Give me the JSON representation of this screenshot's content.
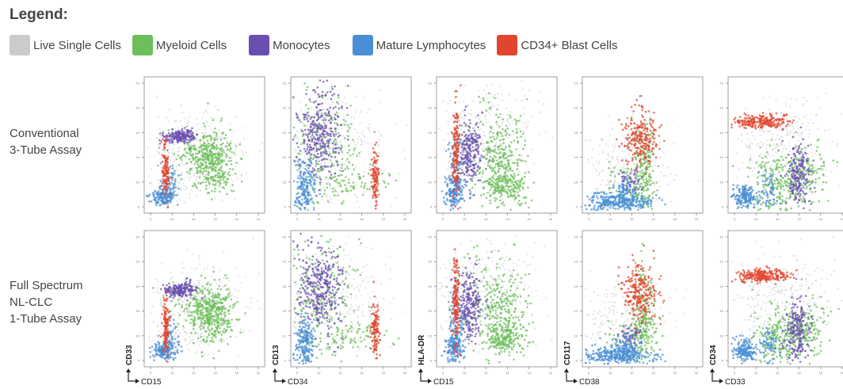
{
  "legend": {
    "title": "Legend:",
    "items": [
      {
        "label": "Live Single Cells",
        "color": "#c9cbcd"
      },
      {
        "label": "Myeloid Cells",
        "color": "#6cbf5a"
      },
      {
        "label": "Monocytes",
        "color": "#6b4fb0"
      },
      {
        "label": "Mature Lymphocytes",
        "color": "#4a8fd6"
      },
      {
        "label": "CD34+ Blast Cells",
        "color": "#e2442e"
      }
    ]
  },
  "rows": [
    {
      "label_lines": [
        "Conventional",
        "3-Tube Assay"
      ]
    },
    {
      "label_lines": [
        "Full Spectrum",
        "NL-CLC",
        "1-Tube Assay"
      ]
    }
  ],
  "chart_data": {
    "type": "scatter",
    "grid": false,
    "columns": [
      {
        "xlabel": "CD15",
        "ylabel": "CD33"
      },
      {
        "xlabel": "CD34",
        "ylabel": "CD13"
      },
      {
        "xlabel": "CD15",
        "ylabel": "HLA-DR"
      },
      {
        "xlabel": "CD38",
        "ylabel": "CD117"
      },
      {
        "xlabel": "CD33",
        "ylabel": "CD34"
      }
    ],
    "series": [
      {
        "name": "Live Single Cells",
        "color": "#c9cbcd"
      },
      {
        "name": "Myeloid Cells",
        "color": "#6cbf5a"
      },
      {
        "name": "Monocytes",
        "color": "#6b4fb0"
      },
      {
        "name": "Mature Lymphocytes",
        "color": "#4a8fd6"
      },
      {
        "name": "CD34+ Blast Cells",
        "color": "#e2442e"
      }
    ]
  }
}
